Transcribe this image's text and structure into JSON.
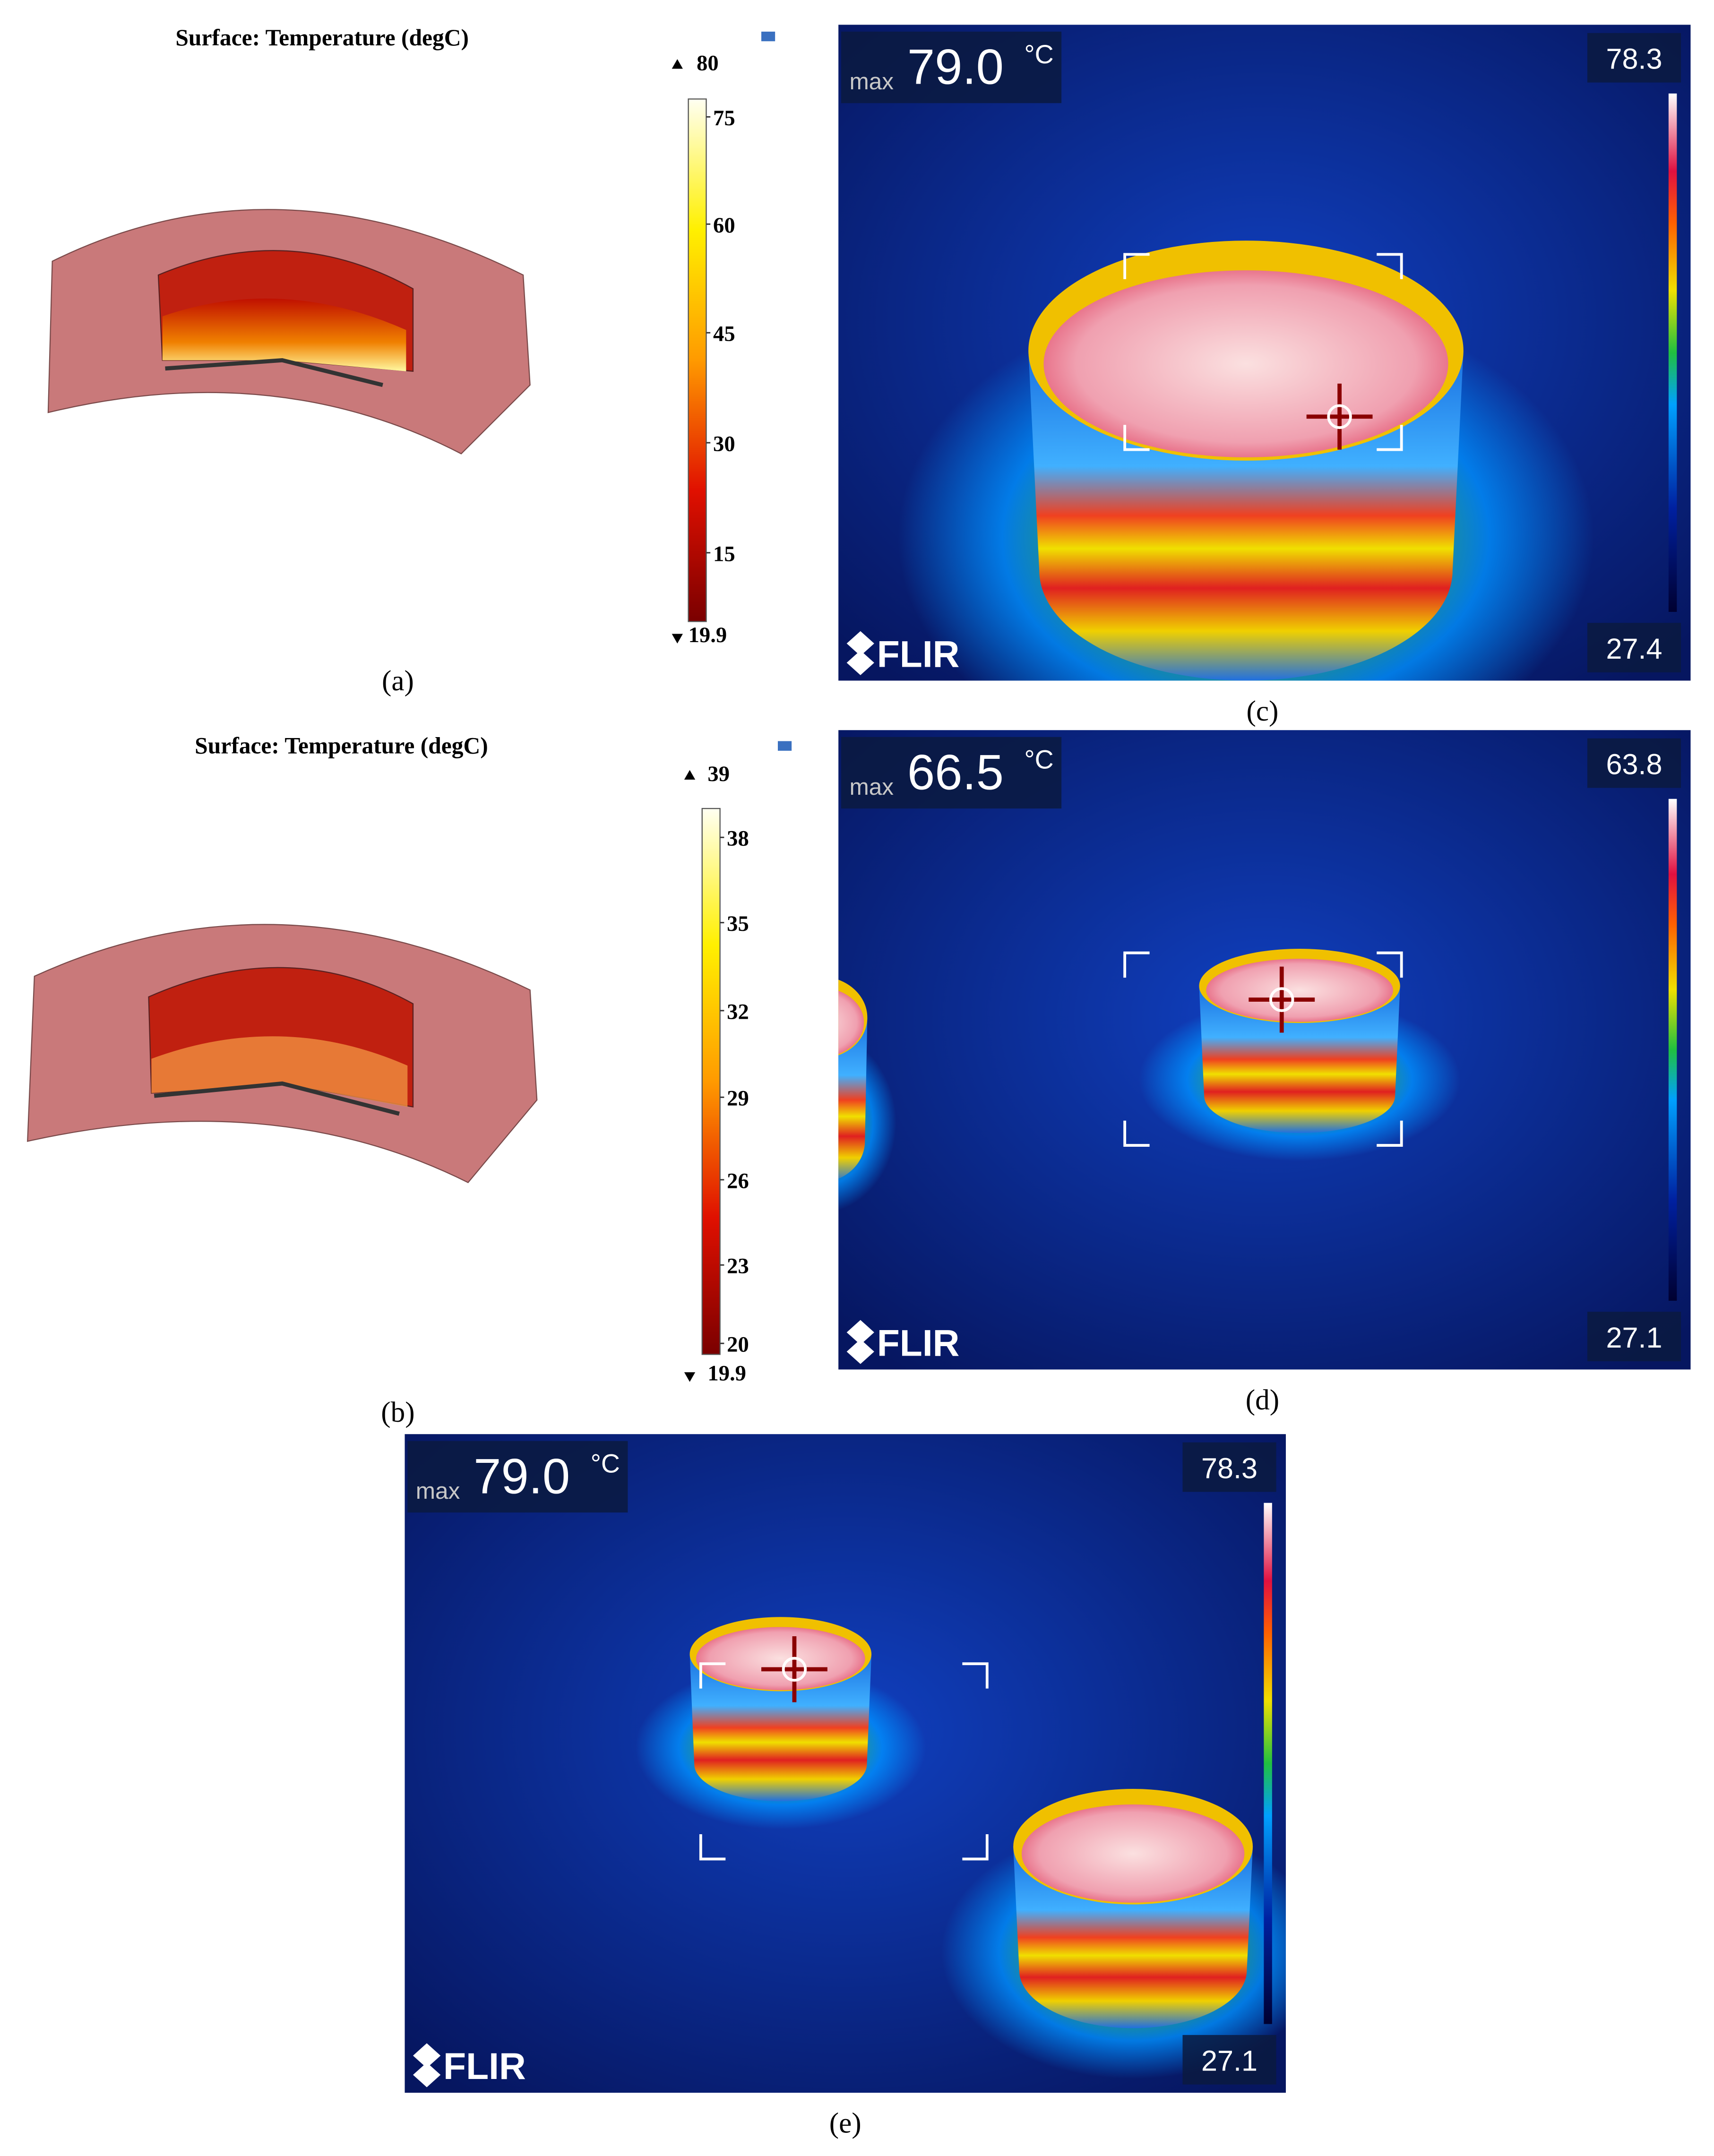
{
  "panels": [
    {
      "label": "(a)",
      "title": "Surface: Temperature (degC)",
      "colorbar": {
        "max": "80",
        "ticks": [
          "75",
          "60",
          "45",
          "30",
          "15"
        ],
        "min": "19.9"
      }
    },
    {
      "label": "(b)",
      "title": "Surface: Temperature (degC)",
      "colorbar": {
        "max": "39",
        "ticks": [
          "38",
          "35",
          "32",
          "29",
          "26",
          "23",
          "20"
        ],
        "min": "19.9"
      }
    },
    {
      "label": "(c)",
      "max_prefix": "max",
      "max_value": "79.0",
      "unit": "°C",
      "scale_top": "78.3",
      "scale_bottom": "27.4",
      "brand": "FLIR"
    },
    {
      "label": "(d)",
      "max_prefix": "max",
      "max_value": "66.5",
      "unit": "°C",
      "scale_top": "63.8",
      "scale_bottom": "27.1",
      "brand": "FLIR"
    },
    {
      "label": "(e)",
      "max_prefix": "max",
      "max_value": "79.0",
      "unit": "°C",
      "scale_top": "78.3",
      "scale_bottom": "27.1",
      "brand": "FLIR"
    }
  ]
}
